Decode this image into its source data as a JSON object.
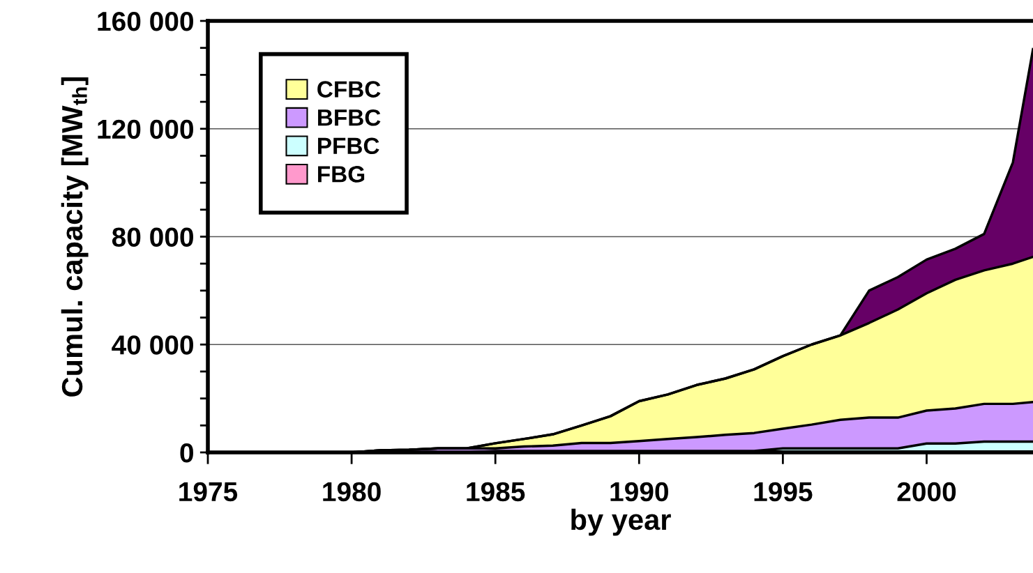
{
  "chart_data": {
    "type": "area",
    "stacked": true,
    "xlabel": "by year",
    "ylabel": "Cumul. capacity [MW$_{th}$]",
    "x": [
      1975,
      1976,
      1977,
      1978,
      1979,
      1980,
      1981,
      1982,
      1983,
      1984,
      1985,
      1986,
      1987,
      1988,
      1989,
      1990,
      1991,
      1992,
      1993,
      1994,
      1995,
      1996,
      1997,
      1998,
      1999,
      2000,
      2001,
      2002,
      2003,
      2003.7
    ],
    "series": [
      {
        "name": "FBG",
        "color": "#ff99cc",
        "values": [
          0,
          0,
          0,
          0,
          0,
          0,
          0,
          0,
          0,
          0,
          300,
          300,
          300,
          300,
          300,
          300,
          300,
          300,
          300,
          300,
          300,
          300,
          300,
          300,
          300,
          300,
          300,
          300,
          300,
          300
        ]
      },
      {
        "name": "PFBC",
        "color": "#ccffff",
        "values": [
          0,
          0,
          0,
          0,
          0,
          0,
          0,
          0,
          0,
          0,
          200,
          200,
          200,
          200,
          200,
          200,
          200,
          200,
          200,
          200,
          1200,
          1200,
          1200,
          1200,
          1200,
          3000,
          3000,
          3700,
          3700,
          3700
        ]
      },
      {
        "name": "BFBC",
        "color": "#cc99ff",
        "values": [
          0,
          0,
          0,
          0,
          0,
          0,
          800,
          1000,
          1500,
          1500,
          1000,
          1700,
          2000,
          3000,
          3000,
          3700,
          4500,
          5200,
          6000,
          6700,
          7300,
          8800,
          10600,
          11400,
          11400,
          12200,
          13000,
          14000,
          14000,
          14700
        ]
      },
      {
        "name": "CFBC",
        "color": "#ffff99",
        "values": [
          0,
          0,
          0,
          0,
          0,
          0,
          0,
          0,
          0,
          0,
          1900,
          2800,
          4200,
          6500,
          9900,
          14800,
          16500,
          19300,
          20900,
          23600,
          26900,
          29700,
          31300,
          35100,
          40100,
          43500,
          47700,
          49500,
          52000,
          53800
        ]
      },
      {
        "color": "#660066",
        "values": [
          0,
          0,
          0,
          0,
          0,
          0,
          0,
          0,
          0,
          0,
          0,
          0,
          0,
          0,
          0,
          0,
          0,
          0,
          0,
          0,
          0,
          0,
          0,
          12000,
          12000,
          12500,
          11500,
          13500,
          37500,
          77000
        ]
      }
    ],
    "xlim": [
      1975,
      2003.7
    ],
    "xticks": [
      1975,
      1980,
      1985,
      1990,
      1995,
      2000
    ],
    "ylim": [
      0,
      160000
    ],
    "yticks": [
      {
        "value": 0,
        "label": "0"
      },
      {
        "value": 10000,
        "label": null
      },
      {
        "value": 20000,
        "label": null
      },
      {
        "value": 30000,
        "label": null
      },
      {
        "value": 40000,
        "label": "40 000"
      },
      {
        "value": 50000,
        "label": null
      },
      {
        "value": 60000,
        "label": null
      },
      {
        "value": 70000,
        "label": null
      },
      {
        "value": 80000,
        "label": "80 000"
      },
      {
        "value": 90000,
        "label": null
      },
      {
        "value": 100000,
        "label": null
      },
      {
        "value": 110000,
        "label": null
      },
      {
        "value": 120000,
        "label": "120 000"
      },
      {
        "value": 130000,
        "label": null
      },
      {
        "value": 140000,
        "label": null
      },
      {
        "value": 150000,
        "label": null
      },
      {
        "value": 160000,
        "label": "160 000"
      }
    ],
    "grid": "y",
    "legend": "top left"
  }
}
